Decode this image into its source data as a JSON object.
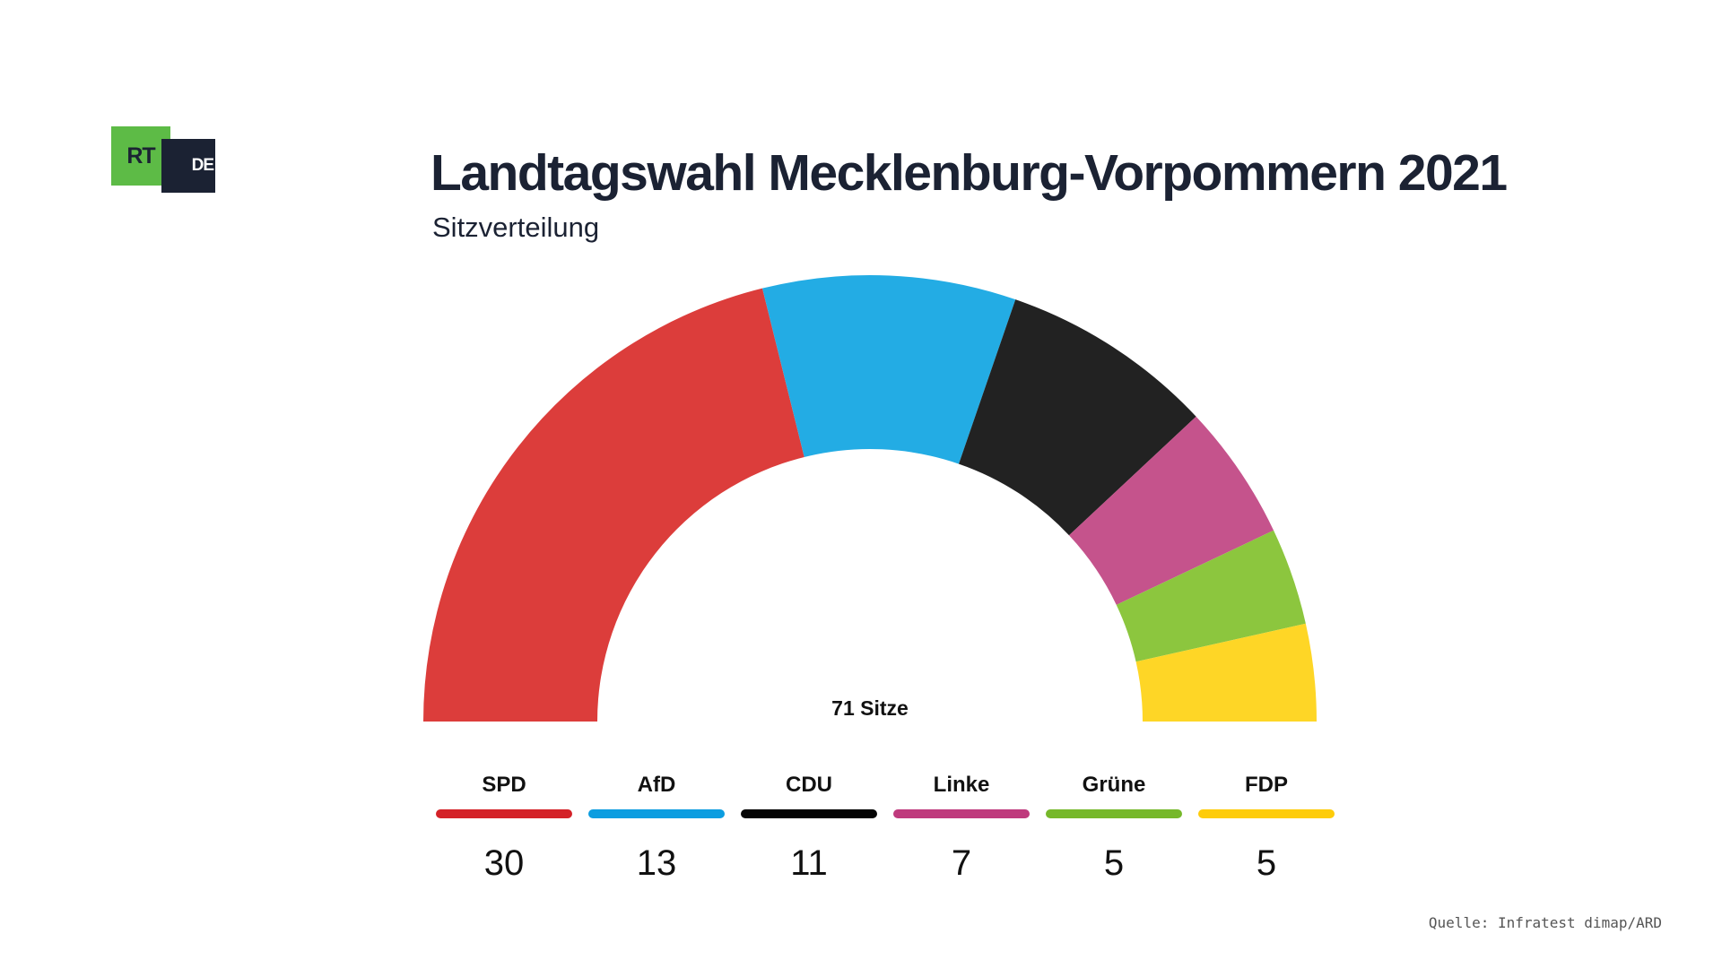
{
  "logo": {
    "part1": "RT",
    "part2": "DE"
  },
  "chart_data": {
    "type": "pie",
    "title": "Landtagswahl Mecklenburg-Vorpommern 2021",
    "subtitle": "Sitzverteilung",
    "center_label": "71 Sitze",
    "total": 71,
    "series": [
      {
        "name": "SPD",
        "value": 30,
        "color": "#dc3d3b",
        "legend_color": "#d42228"
      },
      {
        "name": "AfD",
        "value": 13,
        "color": "#23ace4",
        "legend_color": "#0c9de0"
      },
      {
        "name": "CDU",
        "value": 11,
        "color": "#222222",
        "legend_color": "#050505"
      },
      {
        "name": "Linke",
        "value": 7,
        "color": "#c5538c",
        "legend_color": "#bf3a7d"
      },
      {
        "name": "Grüne",
        "value": 5,
        "color": "#8cc63e",
        "legend_color": "#76b82a"
      },
      {
        "name": "FDP",
        "value": 5,
        "color": "#fed626",
        "legend_color": "#fecc0a"
      }
    ]
  },
  "source": "Quelle: Infratest dimap/ARD"
}
